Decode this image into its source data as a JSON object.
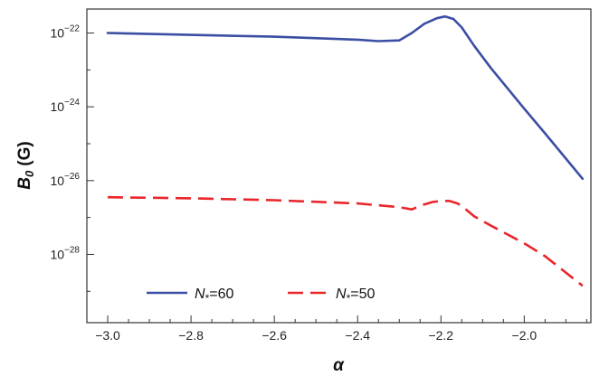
{
  "chart_data": {
    "type": "line",
    "title": "",
    "xlabel": "α",
    "ylabel_main": "B",
    "ylabel_sub": "0",
    "ylabel_unit": "(G)",
    "y_scale": "log",
    "xlim": [
      -3.05,
      -1.84
    ],
    "ylim_exponent": [
      -29.85,
      -21.35
    ],
    "grid": false,
    "legend_position": "bottom-left",
    "x_ticks": [
      {
        "value": -3.0,
        "label": "−3.0"
      },
      {
        "value": -2.8,
        "label": "−2.8"
      },
      {
        "value": -2.6,
        "label": "−2.6"
      },
      {
        "value": -2.4,
        "label": "−2.4"
      },
      {
        "value": -2.2,
        "label": "−2.2"
      },
      {
        "value": -2.0,
        "label": "−2.0"
      }
    ],
    "y_ticks": [
      {
        "exp": -22,
        "base": "10",
        "power": "−22"
      },
      {
        "exp": -24,
        "base": "10",
        "power": "−24"
      },
      {
        "exp": -26,
        "base": "10",
        "power": "−26"
      },
      {
        "exp": -28,
        "base": "10",
        "power": "−28"
      }
    ],
    "series": [
      {
        "name_main": "N",
        "name_sub": "*",
        "name_value": "=60",
        "color": "#3b4ea3",
        "dash": "solid",
        "x": [
          -3.0,
          -2.8,
          -2.6,
          -2.4,
          -2.35,
          -2.3,
          -2.27,
          -2.24,
          -2.21,
          -2.19,
          -2.17,
          -2.15,
          -2.12,
          -2.08,
          -2.0,
          -1.95,
          -1.86
        ],
        "log10_y": [
          -22.0,
          -22.05,
          -22.1,
          -22.18,
          -22.22,
          -22.2,
          -22.0,
          -21.75,
          -21.6,
          -21.55,
          -21.62,
          -21.85,
          -22.35,
          -22.95,
          -24.05,
          -24.72,
          -25.95
        ]
      },
      {
        "name_main": "N",
        "name_sub": "*",
        "name_value": "=50",
        "color": "#e8262b",
        "dash": "dashed",
        "x": [
          -3.0,
          -2.8,
          -2.6,
          -2.4,
          -2.3,
          -2.27,
          -2.25,
          -2.22,
          -2.2,
          -2.18,
          -2.16,
          -2.14,
          -2.12,
          -2.08,
          -2.0,
          -1.95,
          -1.86
        ],
        "log10_y": [
          -26.45,
          -26.48,
          -26.53,
          -26.62,
          -26.72,
          -26.78,
          -26.68,
          -26.58,
          -26.55,
          -26.55,
          -26.62,
          -26.78,
          -26.97,
          -27.22,
          -27.7,
          -28.05,
          -28.85
        ]
      }
    ]
  }
}
